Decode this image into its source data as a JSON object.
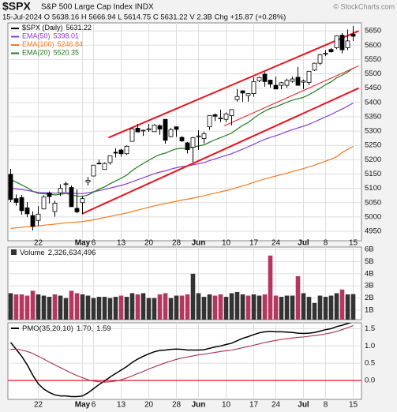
{
  "header": {
    "symbol": "$SPX",
    "name": "S&P 500 Large Cap Index INDX",
    "quote": "15-Jul-2024  O 5638.16  H 5666.94  L 5614.75  C 5631.22  V 2.3B  Chg +15.87 (+0.28%)",
    "credit": "© StockCharts.com"
  },
  "chart_data": [
    {
      "type": "candlestick",
      "name": "$SPX (Daily)",
      "legend_value": "5631.22",
      "color": "#000000",
      "open": [
        5149,
        5064,
        5068,
        5032,
        5005,
        4988,
        5028,
        5084,
        5019,
        5084,
        5114,
        5103,
        5030,
        5050,
        5122,
        5143,
        5188,
        5166,
        5190,
        5226,
        5234,
        5221,
        5264,
        5310,
        5303,
        5305,
        5298,
        5319,
        5341,
        5281,
        5315,
        5278,
        5259,
        5244,
        5283,
        5274,
        5315,
        5357,
        5343,
        5341,
        5354,
        5410,
        5441,
        5424,
        5431,
        5476,
        5499,
        5478,
        5460,
        5460,
        5460,
        5474,
        5488,
        5471,
        5470,
        5513,
        5537,
        5572,
        5585,
        5591,
        5635,
        5591,
        5638.16
      ],
      "high": [
        5168,
        5079,
        5077,
        5052,
        5019,
        5038,
        5076,
        5089,
        5057,
        5114,
        5123,
        5110,
        5096,
        5073,
        5140,
        5181,
        5200,
        5191,
        5215,
        5240,
        5238,
        5250,
        5311,
        5325,
        5305,
        5325,
        5324,
        5323,
        5342,
        5311,
        5316,
        5282,
        5262,
        5280,
        5303,
        5298,
        5354,
        5362,
        5375,
        5365,
        5376,
        5447,
        5441,
        5432,
        5488,
        5490,
        5506,
        5479,
        5490,
        5472,
        5483,
        5490,
        5524,
        5480,
        5510,
        5539,
        5570,
        5583,
        5590,
        5635,
        5642,
        5655,
        5666.94
      ],
      "low": [
        5052,
        5039,
        5008,
        4999,
        4953,
        4969,
        5027,
        5047,
        5001,
        5073,
        5088,
        5036,
        5013,
        5011,
        5110,
        5142,
        5184,
        5165,
        5183,
        5208,
        5211,
        5217,
        5263,
        5296,
        5283,
        5297,
        5298,
        5287,
        5256,
        5278,
        5280,
        5262,
        5222,
        5191,
        5234,
        5257,
        5304,
        5335,
        5331,
        5331,
        5320,
        5403,
        5402,
        5403,
        5420,
        5471,
        5455,
        5452,
        5447,
        5446,
        5451,
        5469,
        5460,
        5447,
        5461,
        5510,
        5531,
        5562,
        5574,
        5586,
        5571,
        5583,
        5614.75
      ],
      "close": [
        5061,
        5051,
        5022,
        5011,
        4967,
        5010,
        5070,
        5071,
        5048,
        5100,
        5116,
        5036,
        5018,
        5064,
        5128,
        5181,
        5187,
        5187,
        5214,
        5223,
        5221,
        5247,
        5308,
        5297,
        5303,
        5308,
        5321,
        5307,
        5268,
        5305,
        5306,
        5266,
        5235,
        5277,
        5283,
        5291,
        5354,
        5352,
        5346,
        5360,
        5375,
        5421,
        5433,
        5431,
        5473,
        5487,
        5473,
        5464,
        5447,
        5469,
        5477,
        5482,
        5460,
        5475,
        5509,
        5537,
        5567,
        5572,
        5577,
        5633,
        5584,
        5615,
        5631.22
      ],
      "series": [
        {
          "name": "EMA(50)",
          "legend_value": "5398.01",
          "color": "#8a3ccf",
          "values": [
            5100,
            5098,
            5096,
            5093,
            5089,
            5086,
            5085,
            5084,
            5083,
            5084,
            5085,
            5084,
            5082,
            5082,
            5084,
            5088,
            5092,
            5096,
            5101,
            5106,
            5110,
            5116,
            5123,
            5130,
            5137,
            5144,
            5151,
            5157,
            5161,
            5167,
            5172,
            5176,
            5178,
            5182,
            5186,
            5190,
            5197,
            5203,
            5209,
            5215,
            5221,
            5229,
            5237,
            5245,
            5254,
            5263,
            5271,
            5278,
            5284,
            5291,
            5298,
            5305,
            5311,
            5317,
            5324,
            5332,
            5341,
            5350,
            5358,
            5368,
            5377,
            5387,
            5398.01
          ]
        },
        {
          "name": "EMA(100)",
          "legend_value": "5246.84",
          "color": "#f07a22",
          "values": [
            4960,
            4962,
            4964,
            4966,
            4967,
            4969,
            4971,
            4973,
            4975,
            4977,
            4980,
            4981,
            4982,
            4984,
            4987,
            4990,
            4994,
            4998,
            5002,
            5006,
            5010,
            5014,
            5019,
            5024,
            5029,
            5034,
            5039,
            5043,
            5047,
            5051,
            5055,
            5059,
            5062,
            5066,
            5070,
            5074,
            5079,
            5083,
            5088,
            5092,
            5097,
            5103,
            5109,
            5114,
            5121,
            5127,
            5133,
            5138,
            5143,
            5148,
            5153,
            5159,
            5164,
            5169,
            5175,
            5181,
            5188,
            5195,
            5202,
            5210,
            5225,
            5236,
            5246.84
          ]
        },
        {
          "name": "EMA(20)",
          "legend_value": "5520.35",
          "color": "#1f7a1f",
          "values": [
            5130,
            5122,
            5112,
            5102,
            5090,
            5082,
            5081,
            5080,
            5077,
            5079,
            5082,
            5078,
            5073,
            5072,
            5077,
            5087,
            5097,
            5105,
            5116,
            5126,
            5135,
            5146,
            5162,
            5175,
            5187,
            5198,
            5209,
            5218,
            5223,
            5231,
            5238,
            5240,
            5240,
            5244,
            5248,
            5252,
            5261,
            5270,
            5277,
            5285,
            5293,
            5307,
            5320,
            5330,
            5345,
            5359,
            5370,
            5379,
            5385,
            5393,
            5401,
            5408,
            5413,
            5418,
            5427,
            5438,
            5450,
            5462,
            5472,
            5486,
            5495,
            5506,
            5520.35
          ]
        }
      ],
      "trendlines": [
        {
          "color": "#e8141e",
          "width": 2,
          "x": [
            17.7,
            63
          ],
          "y": [
            5277,
            5650
          ]
        },
        {
          "color": "#e8141e",
          "width": 2,
          "x": [
            12.9,
            63
          ],
          "y": [
            5011,
            5450
          ]
        },
        {
          "color": "#e8141e",
          "width": 1,
          "x": [
            38.6,
            63
          ],
          "y": [
            5318,
            5528
          ]
        }
      ],
      "ylim": [
        4917,
        5678
      ],
      "yticks": [
        4950,
        5000,
        5050,
        5100,
        5150,
        5200,
        5250,
        5300,
        5350,
        5400,
        5450,
        5500,
        5550,
        5600,
        5650
      ],
      "xticks": [
        {
          "value": 5,
          "label": "22"
        },
        {
          "value": 13,
          "label": "May"
        },
        {
          "value": 15,
          "label": "6"
        },
        {
          "value": 20,
          "label": "13"
        },
        {
          "value": 25,
          "label": "20"
        },
        {
          "value": 30,
          "label": "28"
        },
        {
          "value": 34,
          "label": "Jun"
        },
        {
          "value": 39,
          "label": "10"
        },
        {
          "value": 44,
          "label": "17"
        },
        {
          "value": 48,
          "label": "24"
        },
        {
          "value": 53,
          "label": "Jul"
        },
        {
          "value": 57,
          "label": "8"
        },
        {
          "value": 62,
          "label": "15"
        }
      ],
      "grid": true
    },
    {
      "type": "bar",
      "name": "Volume",
      "legend_value": "2,326,634,496",
      "up_color": "#333333",
      "down_color": "#b5365e",
      "values": [
        2400000000,
        2300000000,
        2300000000,
        2200000000,
        2600000000,
        2300000000,
        2200000000,
        2100000000,
        2300000000,
        2200000000,
        2000000000,
        2600000000,
        2400000000,
        2300000000,
        2200000000,
        2000000000,
        2100000000,
        2100000000,
        2000000000,
        2100000000,
        2200000000,
        2100000000,
        2400000000,
        2300000000,
        2400000000,
        2000000000,
        2000000000,
        2300000000,
        2400000000,
        2000000000,
        2200000000,
        2200000000,
        2300000000,
        4000000000,
        2400000000,
        2100000000,
        2300000000,
        2200000000,
        2300000000,
        2100000000,
        2400000000,
        2500000000,
        2300000000,
        2200000000,
        2300000000,
        2200000000,
        2300000000,
        5500000000,
        2200000000,
        2100000000,
        2200000000,
        2200000000,
        3800000000,
        2400000000,
        2100000000,
        1600000000,
        2200000000,
        2100000000,
        2200000000,
        2400000000,
        2700000000,
        2300000000,
        2326634496
      ],
      "ylim": [
        220000000,
        6200000000
      ],
      "yticks": [
        {
          "value": 1000000000,
          "label": "1B"
        },
        {
          "value": 2000000000,
          "label": "2B"
        },
        {
          "value": 3000000000,
          "label": "3B"
        },
        {
          "value": 4000000000,
          "label": "4B"
        },
        {
          "value": 5000000000,
          "label": "5B"
        },
        {
          "value": 6000000000,
          "label": "6B"
        }
      ],
      "grid": true
    },
    {
      "type": "line",
      "name": "PMO(35,20,10)",
      "series": [
        {
          "legend_value": "1.70,",
          "color": "#000000",
          "values": [
            1.1,
            0.9,
            0.7,
            0.45,
            0.15,
            -0.1,
            -0.25,
            -0.35,
            -0.42,
            -0.45,
            -0.45,
            -0.47,
            -0.47,
            -0.45,
            -0.36,
            -0.24,
            -0.12,
            -0.02,
            0.1,
            0.2,
            0.3,
            0.4,
            0.52,
            0.62,
            0.7,
            0.77,
            0.83,
            0.87,
            0.88,
            0.9,
            0.91,
            0.9,
            0.88,
            0.88,
            0.88,
            0.89,
            0.93,
            0.97,
            1.0,
            1.04,
            1.08,
            1.15,
            1.22,
            1.27,
            1.33,
            1.38,
            1.41,
            1.42,
            1.41,
            1.41,
            1.4,
            1.39,
            1.37,
            1.36,
            1.37,
            1.39,
            1.43,
            1.47,
            1.5,
            1.56,
            1.6,
            1.65,
            1.7
          ]
        },
        {
          "legend_value": "1.59",
          "color": "#a3304f",
          "values": [
            0.9,
            0.9,
            0.88,
            0.84,
            0.78,
            0.7,
            0.62,
            0.53,
            0.45,
            0.37,
            0.29,
            0.21,
            0.14,
            0.08,
            0.02,
            -0.02,
            -0.04,
            -0.05,
            -0.04,
            -0.02,
            0.02,
            0.07,
            0.13,
            0.2,
            0.26,
            0.33,
            0.39,
            0.45,
            0.51,
            0.56,
            0.61,
            0.65,
            0.68,
            0.71,
            0.74,
            0.76,
            0.79,
            0.81,
            0.84,
            0.86,
            0.88,
            0.91,
            0.95,
            0.98,
            1.02,
            1.06,
            1.1,
            1.13,
            1.16,
            1.19,
            1.21,
            1.23,
            1.25,
            1.26,
            1.28,
            1.3,
            1.32,
            1.35,
            1.38,
            1.42,
            1.47,
            1.53,
            1.59
          ]
        }
      ],
      "reference_line": {
        "value": 0,
        "color": "#e8141e"
      },
      "ylim": [
        -0.55,
        1.67
      ],
      "yticks": [
        {
          "value": 0,
          "label": "0.0"
        },
        0.5,
        {
          "value": 1,
          "label": "1.0"
        },
        1.5
      ],
      "xticks": [
        {
          "value": 5,
          "label": "22"
        },
        {
          "value": 13,
          "label": "May"
        },
        {
          "value": 15,
          "label": "6"
        },
        {
          "value": 20,
          "label": "13"
        },
        {
          "value": 25,
          "label": "20"
        },
        {
          "value": 30,
          "label": "28"
        },
        {
          "value": 34,
          "label": "Jun"
        },
        {
          "value": 39,
          "label": "10"
        },
        {
          "value": 44,
          "label": "17"
        },
        {
          "value": 48,
          "label": "24"
        },
        {
          "value": 53,
          "label": "Jul"
        },
        {
          "value": 57,
          "label": "8"
        },
        {
          "value": 62,
          "label": "15"
        }
      ],
      "grid": true
    }
  ]
}
